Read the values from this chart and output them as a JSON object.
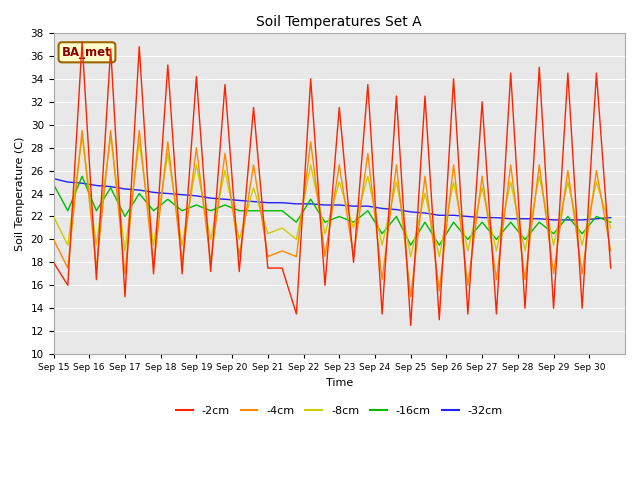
{
  "title": "Soil Temperatures Set A",
  "xlabel": "Time",
  "ylabel": "Soil Temperature (C)",
  "ylim": [
    10,
    38
  ],
  "yticks": [
    10,
    12,
    14,
    16,
    18,
    20,
    22,
    24,
    26,
    28,
    30,
    32,
    34,
    36,
    38
  ],
  "x_labels": [
    "Sep 15",
    "Sep 16",
    "Sep 17",
    "Sep 18",
    "Sep 19",
    "Sep 20",
    "Sep 21",
    "Sep 22",
    "Sep 23",
    "Sep 24",
    "Sep 25",
    "Sep 26",
    "Sep 27",
    "Sep 28",
    "Sep 29",
    "Sep 30"
  ],
  "annotation_text": "BA_met",
  "annotation_bg": "#FFFFCC",
  "annotation_border": "#996600",
  "colors": {
    "-2cm": "#FF2200",
    "-4cm": "#FF8800",
    "-8cm": "#CCCC00",
    "-16cm": "#00BB00",
    "-32cm": "#2222FF"
  },
  "legend_labels": [
    "-2cm",
    "-4cm",
    "-8cm",
    "-16cm",
    "-32cm"
  ],
  "fig_bg": "#FFFFFF",
  "plot_bg": "#E8E8E8",
  "grid_color": "#FFFFFF",
  "linewidth": 1.0,
  "t2cm": [
    18.0,
    16.0,
    37.2,
    16.5,
    36.6,
    15.0,
    36.8,
    17.0,
    35.2,
    17.0,
    34.2,
    17.2,
    33.5,
    17.2,
    31.5,
    17.5,
    17.5,
    13.5,
    34.0,
    16.0,
    31.5,
    18.0,
    33.5,
    13.5,
    32.5,
    12.5,
    32.5,
    13.0,
    34.0,
    13.5,
    32.0,
    13.5,
    34.5,
    14.0,
    35.0,
    14.0,
    34.5,
    14.0,
    34.5,
    17.5
  ],
  "t4cm": [
    20.0,
    17.5,
    29.5,
    17.5,
    29.5,
    17.0,
    29.5,
    17.5,
    28.5,
    18.0,
    28.0,
    18.0,
    27.5,
    18.5,
    26.5,
    18.5,
    19.0,
    18.5,
    28.5,
    18.5,
    26.5,
    18.5,
    27.5,
    16.5,
    26.5,
    15.0,
    25.5,
    15.5,
    26.5,
    16.0,
    25.5,
    16.5,
    26.5,
    16.5,
    26.5,
    17.0,
    26.0,
    17.0,
    26.0,
    19.0
  ],
  "t8cm": [
    22.0,
    19.5,
    29.0,
    19.5,
    29.0,
    19.0,
    28.5,
    19.5,
    27.5,
    19.5,
    26.5,
    20.0,
    26.0,
    20.0,
    24.5,
    20.5,
    21.0,
    20.0,
    26.5,
    20.5,
    25.0,
    21.0,
    25.5,
    19.5,
    25.0,
    18.5,
    24.0,
    18.5,
    25.0,
    19.0,
    24.5,
    19.0,
    25.0,
    19.0,
    25.5,
    19.5,
    25.0,
    19.5,
    25.0,
    21.0
  ],
  "t16cm": [
    24.8,
    22.5,
    25.5,
    22.5,
    24.5,
    22.0,
    24.0,
    22.5,
    23.5,
    22.5,
    23.0,
    22.5,
    23.0,
    22.5,
    22.5,
    22.5,
    22.5,
    21.5,
    23.5,
    21.5,
    22.0,
    21.5,
    22.5,
    20.5,
    22.0,
    19.5,
    21.5,
    19.5,
    21.5,
    20.0,
    21.5,
    20.0,
    21.5,
    20.0,
    21.5,
    20.5,
    22.0,
    20.5,
    22.0,
    21.5
  ],
  "t32cm": [
    25.3,
    25.0,
    24.9,
    24.7,
    24.6,
    24.4,
    24.3,
    24.1,
    24.0,
    23.9,
    23.8,
    23.6,
    23.5,
    23.4,
    23.3,
    23.2,
    23.2,
    23.1,
    23.1,
    23.0,
    23.0,
    22.9,
    22.9,
    22.7,
    22.6,
    22.4,
    22.3,
    22.1,
    22.1,
    22.0,
    21.9,
    21.9,
    21.8,
    21.8,
    21.8,
    21.7,
    21.7,
    21.7,
    21.8,
    21.9
  ]
}
